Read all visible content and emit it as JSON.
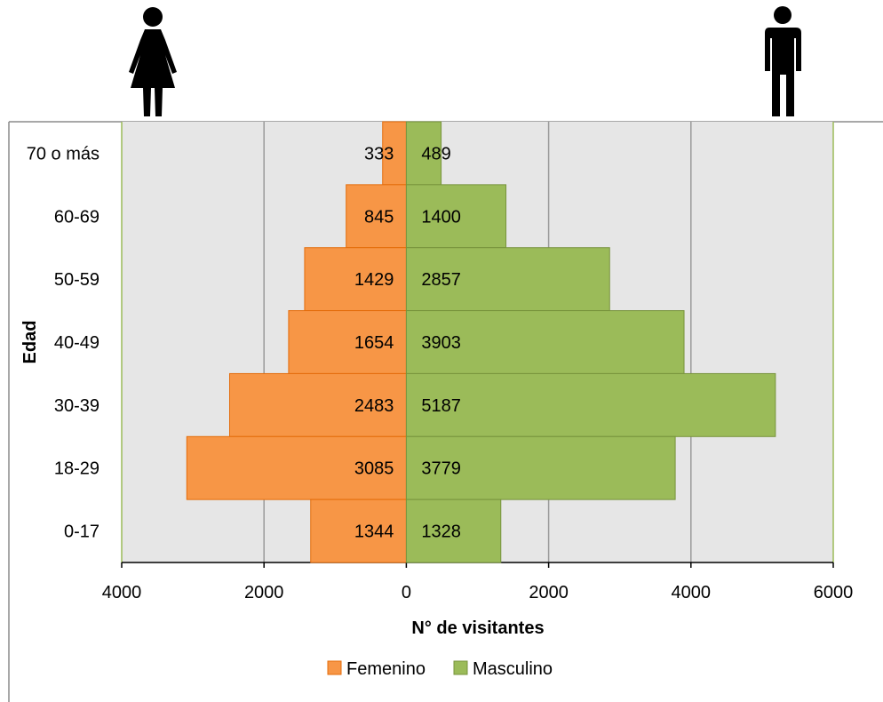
{
  "chart_data": {
    "type": "bar",
    "orientation": "horizontal",
    "layout": "population-pyramid",
    "categories": [
      "70 o más",
      "60-69",
      "50-59",
      "40-49",
      "30-39",
      "18-29",
      "0-17"
    ],
    "series": [
      {
        "name": "Femenino",
        "color": "#F79646",
        "values": [
          333,
          845,
          1429,
          1654,
          2483,
          3085,
          1344
        ]
      },
      {
        "name": "Masculino",
        "color": "#9BBB59",
        "values": [
          489,
          1400,
          2857,
          3903,
          5187,
          3779,
          1328
        ]
      }
    ],
    "xlabel": "N° de visitantes",
    "ylabel": "Edad",
    "xlim": [
      -4000,
      6000
    ],
    "x_ticks": [
      -4000,
      -2000,
      0,
      2000,
      4000,
      6000
    ],
    "x_tick_labels": [
      "4000",
      "2000",
      "0",
      "2000",
      "4000",
      "6000"
    ],
    "grid": true,
    "plot_background": "#E6E6E6",
    "legend_position": "bottom",
    "icons": {
      "left": "woman-icon",
      "right": "man-icon"
    }
  }
}
